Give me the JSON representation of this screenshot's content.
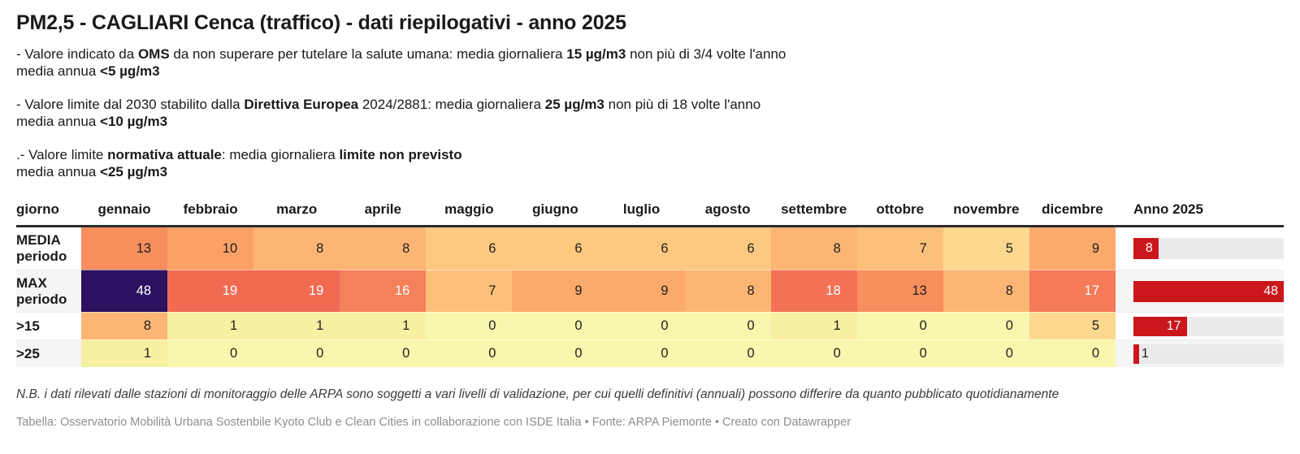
{
  "title": "PM2,5 - CAGLIARI Cenca (traffico) - dati riepilogativi - anno 2025",
  "notes": {
    "p1": {
      "a": "- Valore indicato da ",
      "b": "OMS",
      "c": " da non superare per tutelare la salute umana: media giornaliera ",
      "d": "15 µg/m3",
      "e": " non più di 3/4 volte l'anno",
      "f": "media annua ",
      "g": "<5 µg/m3"
    },
    "p2": {
      "a": "- Valore limite dal 2030 stabilito dalla ",
      "b": "Direttiva Europea",
      "c": " 2024/2881: media giornaliera ",
      "d": "25 µg/m3",
      "e": " non più di 18 volte l'anno",
      "f": "media annua ",
      "g": "<10 µg/m3"
    },
    "p3": {
      "a": ".- Valore limite ",
      "b": "normativa attuale",
      "c": ": media giornaliera ",
      "d": "limite non previsto",
      "f": "media annua ",
      "g": "<25 µg/m3"
    }
  },
  "table": {
    "row_header": "giorno",
    "months": [
      "gennaio",
      "febbraio",
      "marzo",
      "aprile",
      "maggio",
      "giugno",
      "luglio",
      "agosto",
      "settembre",
      "ottobre",
      "novembre",
      "dicembre"
    ],
    "year_header": "Anno 2025",
    "bar_max": 48,
    "bar_color": "#c9171c",
    "track_color": "#ebebeb",
    "stripe_color": "#f5f5f5",
    "rows": [
      {
        "label": "MEDIA\nperiodo",
        "tall": true,
        "stripe": false,
        "values": [
          13,
          10,
          8,
          8,
          6,
          6,
          6,
          6,
          8,
          7,
          5,
          9
        ],
        "bar": 8
      },
      {
        "label": "MAX\nperiodo",
        "tall": true,
        "stripe": true,
        "values": [
          48,
          19,
          19,
          16,
          7,
          9,
          9,
          8,
          18,
          13,
          8,
          17
        ],
        "bar": 48
      },
      {
        "label": ">15",
        "tall": false,
        "stripe": false,
        "values": [
          8,
          1,
          1,
          1,
          0,
          0,
          0,
          0,
          1,
          0,
          0,
          5
        ],
        "bar": 17
      },
      {
        "label": ">25",
        "tall": false,
        "stripe": true,
        "values": [
          1,
          0,
          0,
          0,
          0,
          0,
          0,
          0,
          0,
          0,
          0,
          0
        ],
        "bar": 1
      }
    ],
    "value_colors": {
      "0": "#f9f6ad",
      "1": "#f7efa1",
      "5": "#fdd88f",
      "6": "#fdc981",
      "7": "#fdc07a",
      "8": "#fcb573",
      "9": "#fbaa6b",
      "10": "#faa166",
      "13": "#f88e5e",
      "16": "#f5815a",
      "17": "#f47a58",
      "18": "#f37256",
      "19": "#f16b53",
      "48": "#2c1160"
    },
    "light_text_values": [
      16,
      17,
      18,
      19,
      48
    ]
  },
  "footer": {
    "nb": "N.B. i dati rilevati dalle stazioni di monitoraggio delle ARPA sono soggetti a vari livelli di validazione, per cui quelli definitivi (annuali) possono differire da quanto pubblicato quotidianamente",
    "credits": "Tabella: Osservatorio Mobilità Urbana Sostenbile Kyoto Club e Clean Cities in collaborazione con ISDE Italia • Fonte: ARPA Piemonte • Creato con Datawrapper"
  },
  "chart_data": {
    "type": "heatmap",
    "title": "PM2,5 - CAGLIARI Cenca (traffico) - dati riepilogativi - anno 2025",
    "categories": [
      "gennaio",
      "febbraio",
      "marzo",
      "aprile",
      "maggio",
      "giugno",
      "luglio",
      "agosto",
      "settembre",
      "ottobre",
      "novembre",
      "dicembre"
    ],
    "series": [
      {
        "name": "MEDIA periodo",
        "values": [
          13,
          10,
          8,
          8,
          6,
          6,
          6,
          6,
          8,
          7,
          5,
          9
        ],
        "anno_2025": 8
      },
      {
        "name": "MAX periodo",
        "values": [
          48,
          19,
          19,
          16,
          7,
          9,
          9,
          8,
          18,
          13,
          8,
          17
        ],
        "anno_2025": 48
      },
      {
        "name": ">15",
        "values": [
          8,
          1,
          1,
          1,
          0,
          0,
          0,
          0,
          1,
          0,
          0,
          5
        ],
        "anno_2025": 17
      },
      {
        "name": ">25",
        "values": [
          1,
          0,
          0,
          0,
          0,
          0,
          0,
          0,
          0,
          0,
          0,
          0
        ],
        "anno_2025": 1
      }
    ],
    "annual_bar_range": [
      0,
      48
    ],
    "legend_position": "none",
    "grid": false,
    "palette": "pale-yellow → orange → salmon-red → dark-purple heat scale; annual column red bars on gray track"
  }
}
